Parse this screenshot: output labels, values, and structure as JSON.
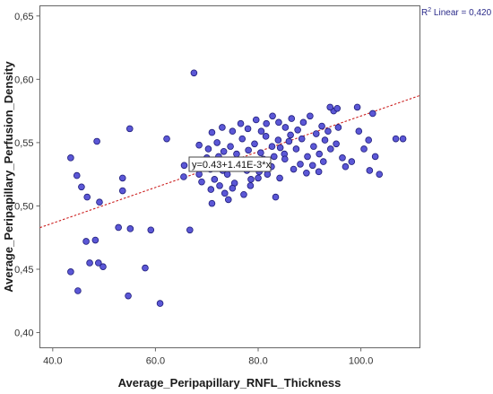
{
  "chart_data": {
    "type": "scatter",
    "title": "",
    "xlabel": "Average_Peripapillary_RNFL_Thickness",
    "ylabel": "Average_Peripapillary_Perfusion_Density",
    "xlim": [
      37.5,
      111.5
    ],
    "ylim": [
      0.388,
      0.658
    ],
    "xticks": [
      40.0,
      60.0,
      80.0,
      100.0
    ],
    "xtick_labels": [
      "40.0",
      "60.0",
      "80.0",
      "100.0"
    ],
    "yticks": [
      0.4,
      0.45,
      0.5,
      0.55,
      0.6,
      0.65
    ],
    "ytick_labels": [
      "0,40",
      "0,45",
      "0,50",
      "0,55",
      "0,60",
      "0,65"
    ],
    "grid": false,
    "point_color": "#5b57d6",
    "point_edge_color": "#1f1d7a",
    "fit_line_color": "#cc2020",
    "annotations": {
      "r2_prefix": "R",
      "r2_sup": "2",
      "r2_text": " Linear = 0,420",
      "equation": "y=0.43+1.41E-3*x"
    },
    "fit_line": {
      "intercept": 0.43,
      "slope": 0.00141,
      "x_range": [
        37.5,
        111.5
      ]
    },
    "points": [
      [
        43.5,
        0.538
      ],
      [
        44.7,
        0.524
      ],
      [
        45.6,
        0.515
      ],
      [
        46.7,
        0.507
      ],
      [
        48.6,
        0.551
      ],
      [
        49.1,
        0.503
      ],
      [
        46.5,
        0.472
      ],
      [
        48.3,
        0.473
      ],
      [
        47.2,
        0.455
      ],
      [
        48.9,
        0.455
      ],
      [
        49.8,
        0.452
      ],
      [
        43.5,
        0.448
      ],
      [
        44.9,
        0.433
      ],
      [
        52.8,
        0.483
      ],
      [
        53.6,
        0.512
      ],
      [
        53.6,
        0.522
      ],
      [
        55.0,
        0.561
      ],
      [
        55.1,
        0.482
      ],
      [
        54.7,
        0.429
      ],
      [
        58.0,
        0.451
      ],
      [
        59.1,
        0.481
      ],
      [
        60.9,
        0.423
      ],
      [
        62.2,
        0.553
      ],
      [
        65.6,
        0.532
      ],
      [
        66.7,
        0.481
      ],
      [
        67.5,
        0.605
      ],
      [
        65.5,
        0.523
      ],
      [
        67.5,
        0.532
      ],
      [
        68.5,
        0.525
      ],
      [
        69.2,
        0.534
      ],
      [
        70.0,
        0.538
      ],
      [
        70.7,
        0.529
      ],
      [
        71.5,
        0.521
      ],
      [
        72.3,
        0.539
      ],
      [
        73.1,
        0.528
      ],
      [
        74.0,
        0.525
      ],
      [
        74.8,
        0.532
      ],
      [
        75.4,
        0.518
      ],
      [
        76.2,
        0.53
      ],
      [
        77.0,
        0.536
      ],
      [
        77.8,
        0.528
      ],
      [
        78.6,
        0.521
      ],
      [
        79.4,
        0.533
      ],
      [
        80.2,
        0.527
      ],
      [
        81.0,
        0.537
      ],
      [
        81.8,
        0.525
      ],
      [
        82.6,
        0.531
      ],
      [
        83.4,
        0.507
      ],
      [
        84.2,
        0.522
      ],
      [
        69.0,
        0.519
      ],
      [
        70.8,
        0.513
      ],
      [
        72.5,
        0.516
      ],
      [
        73.5,
        0.51
      ],
      [
        75.0,
        0.514
      ],
      [
        77.2,
        0.509
      ],
      [
        78.5,
        0.516
      ],
      [
        80.0,
        0.522
      ],
      [
        71.0,
        0.502
      ],
      [
        74.2,
        0.505
      ],
      [
        68.5,
        0.548
      ],
      [
        70.3,
        0.545
      ],
      [
        72.0,
        0.55
      ],
      [
        73.3,
        0.543
      ],
      [
        74.6,
        0.547
      ],
      [
        75.8,
        0.541
      ],
      [
        76.9,
        0.553
      ],
      [
        78.1,
        0.544
      ],
      [
        79.3,
        0.549
      ],
      [
        80.5,
        0.542
      ],
      [
        81.5,
        0.555
      ],
      [
        82.7,
        0.547
      ],
      [
        83.9,
        0.552
      ],
      [
        85.1,
        0.541
      ],
      [
        86.3,
        0.556
      ],
      [
        87.4,
        0.545
      ],
      [
        88.5,
        0.553
      ],
      [
        89.6,
        0.539
      ],
      [
        90.8,
        0.547
      ],
      [
        91.9,
        0.541
      ],
      [
        93.0,
        0.552
      ],
      [
        94.1,
        0.545
      ],
      [
        95.2,
        0.549
      ],
      [
        96.4,
        0.538
      ],
      [
        71.0,
        0.558
      ],
      [
        73.0,
        0.562
      ],
      [
        75.0,
        0.559
      ],
      [
        76.6,
        0.565
      ],
      [
        78.0,
        0.561
      ],
      [
        79.6,
        0.568
      ],
      [
        80.6,
        0.559
      ],
      [
        81.6,
        0.565
      ],
      [
        82.8,
        0.571
      ],
      [
        84.0,
        0.566
      ],
      [
        85.3,
        0.562
      ],
      [
        86.5,
        0.569
      ],
      [
        87.7,
        0.56
      ],
      [
        88.8,
        0.566
      ],
      [
        90.1,
        0.571
      ],
      [
        91.3,
        0.557
      ],
      [
        92.4,
        0.563
      ],
      [
        93.6,
        0.559
      ],
      [
        94.7,
        0.575
      ],
      [
        95.6,
        0.562
      ],
      [
        85.2,
        0.537
      ],
      [
        86.9,
        0.529
      ],
      [
        88.2,
        0.533
      ],
      [
        89.4,
        0.526
      ],
      [
        90.6,
        0.532
      ],
      [
        91.8,
        0.527
      ],
      [
        84.3,
        0.546
      ],
      [
        83.1,
        0.539
      ],
      [
        86.0,
        0.551
      ],
      [
        92.7,
        0.535
      ],
      [
        97.0,
        0.531
      ],
      [
        98.2,
        0.535
      ],
      [
        99.6,
        0.559
      ],
      [
        100.6,
        0.545
      ],
      [
        101.5,
        0.552
      ],
      [
        102.3,
        0.573
      ],
      [
        102.8,
        0.539
      ],
      [
        103.6,
        0.525
      ],
      [
        106.8,
        0.553
      ],
      [
        108.2,
        0.553
      ],
      [
        94.0,
        0.578
      ],
      [
        95.4,
        0.577
      ],
      [
        99.3,
        0.578
      ],
      [
        101.7,
        0.528
      ]
    ]
  }
}
